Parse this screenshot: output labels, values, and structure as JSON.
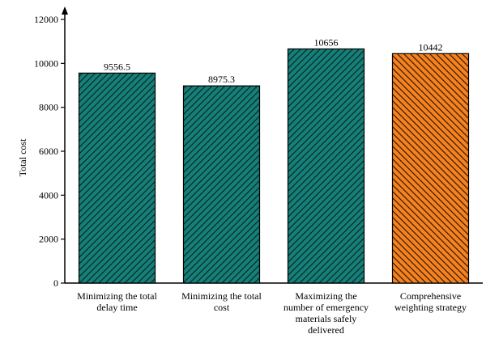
{
  "chart_data": {
    "type": "bar",
    "categories": [
      [
        "Minimizing the total",
        "delay time"
      ],
      [
        "Minimizing the total",
        "cost"
      ],
      [
        "Maximizing the",
        "number of emergency",
        "materials safely",
        "delivered"
      ],
      [
        "Comprehensive",
        "weighting strategy"
      ]
    ],
    "values": [
      9556.5,
      8975.3,
      10656,
      10442
    ],
    "value_labels": [
      "9556.5",
      "8975.3",
      "10656",
      "10442"
    ],
    "bar_colors": [
      "#148079",
      "#148079",
      "#148079",
      "#f5821f"
    ],
    "ylabel": "Total cost",
    "ylim": [
      0,
      12000
    ],
    "yticks": [
      0,
      2000,
      4000,
      6000,
      8000,
      10000,
      12000
    ],
    "grid": false,
    "legend": "none"
  }
}
